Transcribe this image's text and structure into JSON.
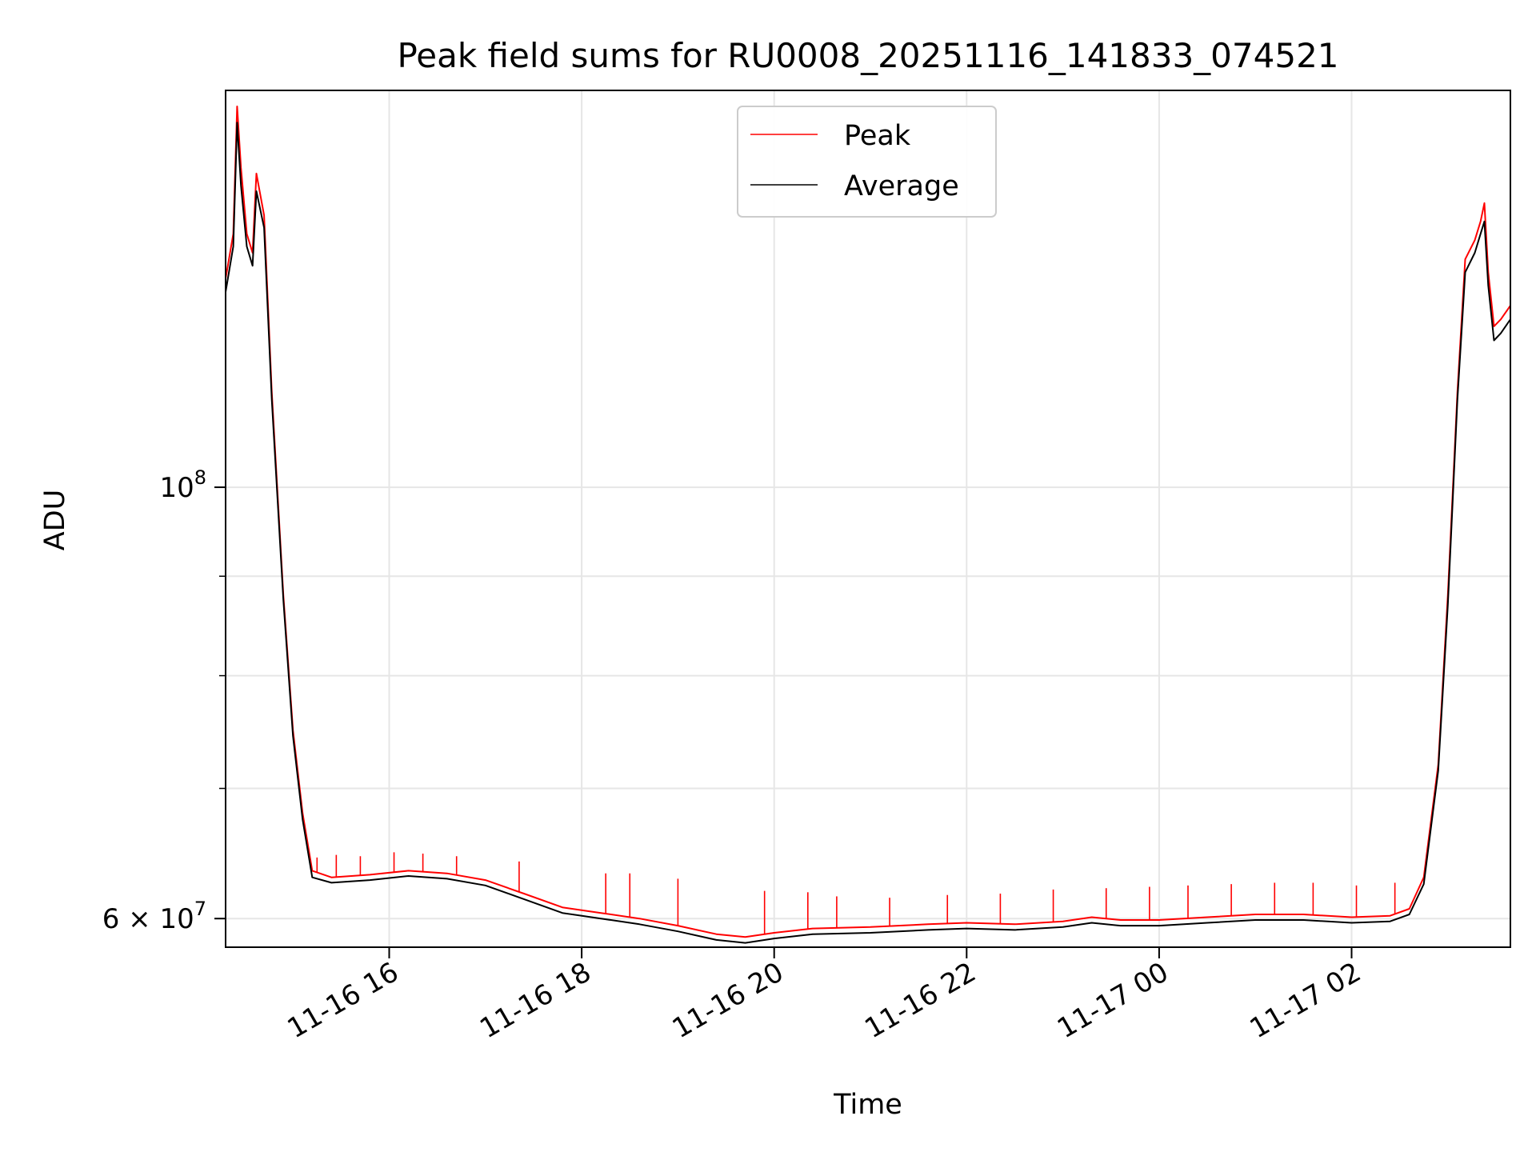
{
  "chart_data": {
    "type": "line",
    "title": "Peak field sums for RU0008_20251116_141833_074521",
    "xlabel": "Time",
    "ylabel": "ADU",
    "yscale": "log",
    "xlim_hours": [
      14.3,
      27.65
    ],
    "ylim": [
      58000000,
      160000000
    ],
    "grid": true,
    "legend_position": "upper center",
    "x_ticks": [
      {
        "value": 16,
        "label": "11-16 16"
      },
      {
        "value": 18,
        "label": "11-16 18"
      },
      {
        "value": 20,
        "label": "11-16 20"
      },
      {
        "value": 22,
        "label": "11-16 22"
      },
      {
        "value": 24,
        "label": "11-17 00"
      },
      {
        "value": 26,
        "label": "11-17 02"
      }
    ],
    "y_ticks": [
      {
        "value": 100000000,
        "label_base": "10",
        "label_exp": "8"
      },
      {
        "value": 60000000,
        "label_base": "6 × 10",
        "label_exp": "7"
      }
    ],
    "y_minor_ticks": [
      70000000,
      80000000,
      90000000
    ],
    "series": [
      {
        "name": "Peak",
        "color": "#ff0000",
        "points": [
          [
            14.3,
            128000000
          ],
          [
            14.38,
            135000000
          ],
          [
            14.42,
            157000000
          ],
          [
            14.46,
            146000000
          ],
          [
            14.52,
            135000000
          ],
          [
            14.58,
            132000000
          ],
          [
            14.62,
            145000000
          ],
          [
            14.7,
            138000000
          ],
          [
            14.78,
            112000000
          ],
          [
            14.9,
            88000000
          ],
          [
            15.0,
            75000000
          ],
          [
            15.1,
            68000000
          ],
          [
            15.2,
            63500000
          ],
          [
            15.4,
            63000000
          ],
          [
            15.8,
            63200000
          ],
          [
            16.2,
            63500000
          ],
          [
            16.6,
            63300000
          ],
          [
            17.0,
            62800000
          ],
          [
            17.4,
            61800000
          ],
          [
            17.8,
            60800000
          ],
          [
            18.2,
            60400000
          ],
          [
            18.6,
            60000000
          ],
          [
            19.0,
            59500000
          ],
          [
            19.4,
            58900000
          ],
          [
            19.7,
            58700000
          ],
          [
            20.0,
            59000000
          ],
          [
            20.4,
            59300000
          ],
          [
            21.0,
            59400000
          ],
          [
            21.6,
            59600000
          ],
          [
            22.0,
            59700000
          ],
          [
            22.5,
            59600000
          ],
          [
            23.0,
            59800000
          ],
          [
            23.3,
            60100000
          ],
          [
            23.6,
            59900000
          ],
          [
            24.0,
            59900000
          ],
          [
            24.5,
            60100000
          ],
          [
            25.0,
            60300000
          ],
          [
            25.5,
            60300000
          ],
          [
            26.0,
            60100000
          ],
          [
            26.4,
            60200000
          ],
          [
            26.6,
            60700000
          ],
          [
            26.75,
            63000000
          ],
          [
            26.9,
            72000000
          ],
          [
            27.0,
            88000000
          ],
          [
            27.1,
            112000000
          ],
          [
            27.18,
            131000000
          ],
          [
            27.28,
            134000000
          ],
          [
            27.34,
            137000000
          ],
          [
            27.38,
            140000000
          ],
          [
            27.42,
            129000000
          ],
          [
            27.48,
            121000000
          ],
          [
            27.55,
            122000000
          ],
          [
            27.65,
            124000000
          ]
        ],
        "spikes": [
          [
            15.25,
            64500000
          ],
          [
            15.45,
            64700000
          ],
          [
            15.7,
            64600000
          ],
          [
            16.05,
            64900000
          ],
          [
            16.35,
            64800000
          ],
          [
            16.7,
            64600000
          ],
          [
            17.35,
            64200000
          ],
          [
            18.25,
            63300000
          ],
          [
            18.5,
            63300000
          ],
          [
            19.0,
            62900000
          ],
          [
            19.9,
            62000000
          ],
          [
            20.35,
            61900000
          ],
          [
            20.65,
            61600000
          ],
          [
            21.2,
            61500000
          ],
          [
            21.8,
            61700000
          ],
          [
            22.35,
            61800000
          ],
          [
            22.9,
            62100000
          ],
          [
            23.45,
            62200000
          ],
          [
            23.9,
            62300000
          ],
          [
            24.3,
            62400000
          ],
          [
            24.75,
            62500000
          ],
          [
            25.2,
            62600000
          ],
          [
            25.6,
            62600000
          ],
          [
            26.05,
            62400000
          ],
          [
            26.45,
            62600000
          ]
        ]
      },
      {
        "name": "Average",
        "color": "#000000",
        "points": [
          [
            14.3,
            126000000
          ],
          [
            14.38,
            133000000
          ],
          [
            14.42,
            154000000
          ],
          [
            14.46,
            143000000
          ],
          [
            14.52,
            133000000
          ],
          [
            14.58,
            130000000
          ],
          [
            14.62,
            142000000
          ],
          [
            14.7,
            136000000
          ],
          [
            14.78,
            111000000
          ],
          [
            14.9,
            87500000
          ],
          [
            15.0,
            74500000
          ],
          [
            15.1,
            67500000
          ],
          [
            15.2,
            63000000
          ],
          [
            15.4,
            62600000
          ],
          [
            15.8,
            62800000
          ],
          [
            16.2,
            63100000
          ],
          [
            16.6,
            62900000
          ],
          [
            17.0,
            62400000
          ],
          [
            17.4,
            61400000
          ],
          [
            17.8,
            60400000
          ],
          [
            18.2,
            60000000
          ],
          [
            18.6,
            59600000
          ],
          [
            19.0,
            59100000
          ],
          [
            19.4,
            58500000
          ],
          [
            19.7,
            58300000
          ],
          [
            20.0,
            58600000
          ],
          [
            20.4,
            58900000
          ],
          [
            21.0,
            59000000
          ],
          [
            21.6,
            59200000
          ],
          [
            22.0,
            59300000
          ],
          [
            22.5,
            59200000
          ],
          [
            23.0,
            59400000
          ],
          [
            23.3,
            59700000
          ],
          [
            23.6,
            59500000
          ],
          [
            24.0,
            59500000
          ],
          [
            24.5,
            59700000
          ],
          [
            25.0,
            59900000
          ],
          [
            25.5,
            59900000
          ],
          [
            26.0,
            59700000
          ],
          [
            26.4,
            59800000
          ],
          [
            26.6,
            60300000
          ],
          [
            26.75,
            62500000
          ],
          [
            26.9,
            71500000
          ],
          [
            27.0,
            87000000
          ],
          [
            27.1,
            111000000
          ],
          [
            27.18,
            129000000
          ],
          [
            27.28,
            132000000
          ],
          [
            27.34,
            135000000
          ],
          [
            27.38,
            137000000
          ],
          [
            27.42,
            127000000
          ],
          [
            27.48,
            119000000
          ],
          [
            27.55,
            120000000
          ],
          [
            27.65,
            122000000
          ]
        ]
      }
    ]
  }
}
